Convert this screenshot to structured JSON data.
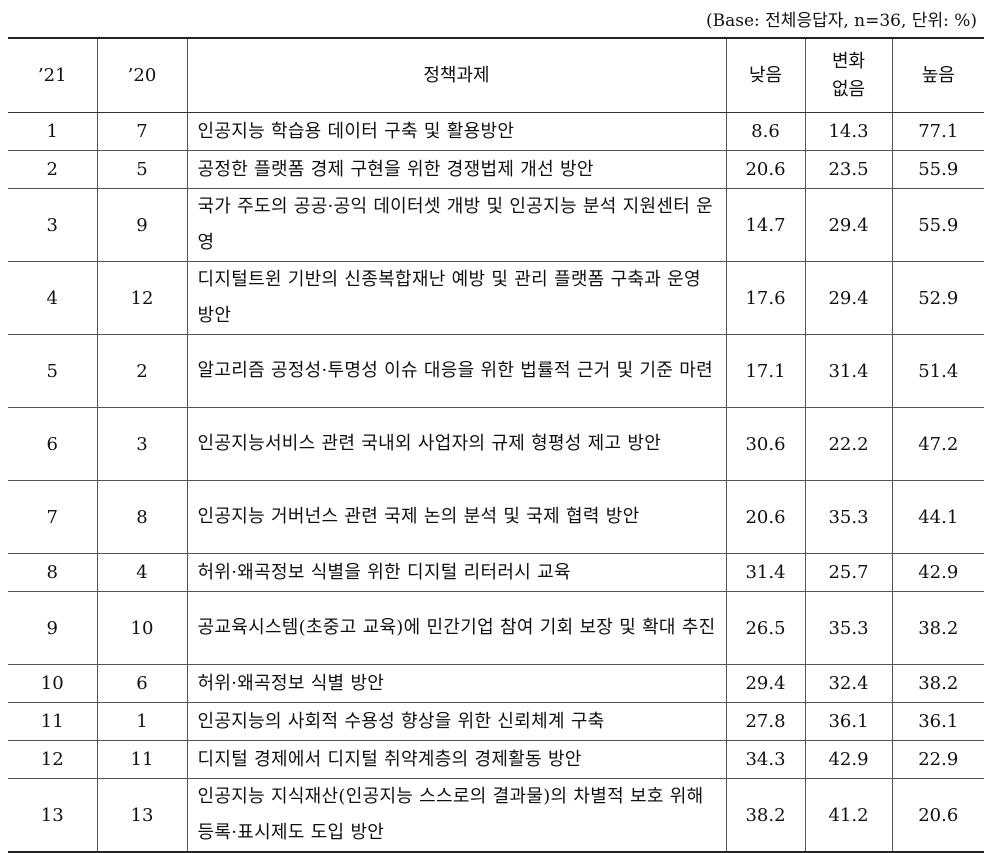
{
  "base_note": "(Base: 전체응답자, n=36, 단위: %)",
  "headers": {
    "y21": "’21",
    "y20": "’20",
    "task": "정책과제",
    "low": "낮음",
    "nochange_1": "변화",
    "nochange_2": "없음",
    "high": "높음"
  },
  "rows": [
    {
      "r21": "1",
      "r20": "7",
      "task": "인공지능 학습용 데이터 구축 및 활용방안",
      "low": "8.6",
      "nochange": "14.3",
      "high": "77.1"
    },
    {
      "r21": "2",
      "r20": "5",
      "task": "공정한 플랫폼 경제 구현을 위한 경쟁법제 개선 방안",
      "low": "20.6",
      "nochange": "23.5",
      "high": "55.9"
    },
    {
      "r21": "3",
      "r20": "9",
      "task": "국가 주도의 공공·공익 데이터셋 개방 및 인공지능 분석 지원센터 운영",
      "low": "14.7",
      "nochange": "29.4",
      "high": "55.9"
    },
    {
      "r21": "4",
      "r20": "12",
      "task": "디지털트윈 기반의 신종복합재난 예방 및 관리 플랫폼 구축과 운영 방안",
      "low": "17.6",
      "nochange": "29.4",
      "high": "52.9"
    },
    {
      "r21": "5",
      "r20": "2",
      "task": "알고리즘 공정성·투명성 이슈 대응을 위한 법률적 근거 및 기준 마련",
      "low": "17.1",
      "nochange": "31.4",
      "high": "51.4"
    },
    {
      "r21": "6",
      "r20": "3",
      "task": "인공지능서비스 관련 국내외 사업자의 규제 형평성 제고 방안",
      "low": "30.6",
      "nochange": "22.2",
      "high": "47.2"
    },
    {
      "r21": "7",
      "r20": "8",
      "task": "인공지능 거버넌스 관련 국제 논의 분석 및 국제 협력 방안",
      "low": "20.6",
      "nochange": "35.3",
      "high": "44.1"
    },
    {
      "r21": "8",
      "r20": "4",
      "task": "허위·왜곡정보 식별을 위한 디지털 리터러시 교육",
      "low": "31.4",
      "nochange": "25.7",
      "high": "42.9"
    },
    {
      "r21": "9",
      "r20": "10",
      "task": "공교육시스템(초중고 교육)에 민간기업 참여 기회 보장 및 확대 추진",
      "low": "26.5",
      "nochange": "35.3",
      "high": "38.2"
    },
    {
      "r21": "10",
      "r20": "6",
      "task": "허위·왜곡정보 식별 방안",
      "low": "29.4",
      "nochange": "32.4",
      "high": "38.2"
    },
    {
      "r21": "11",
      "r20": "1",
      "task": "인공지능의 사회적 수용성 향상을 위한 신뢰체계 구축",
      "low": "27.8",
      "nochange": "36.1",
      "high": "36.1"
    },
    {
      "r21": "12",
      "r20": "11",
      "task": "디지털 경제에서 디지털 취약계층의 경제활동 방안",
      "low": "34.3",
      "nochange": "42.9",
      "high": "22.9"
    },
    {
      "r21": "13",
      "r20": "13",
      "task": "인공지능 지식재산(인공지능 스스로의 결과물)의 차별적 보호 위해 등록·표시제도 도입 방안",
      "low": "38.2",
      "nochange": "41.2",
      "high": "20.6"
    }
  ]
}
